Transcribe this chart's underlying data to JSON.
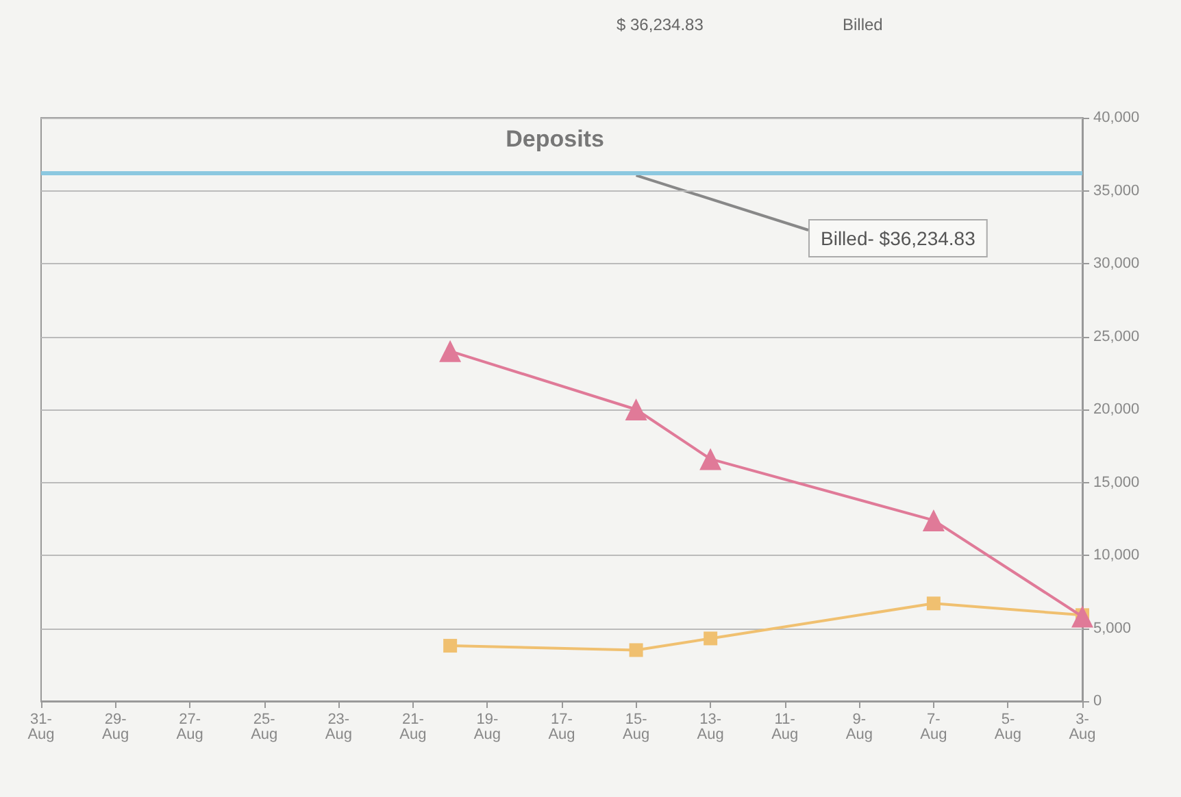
{
  "chart_data": {
    "type": "line",
    "title": "Deposits",
    "annotations": [
      "Billed",
      "$ 36,234.83"
    ],
    "x": [
      "--08-03",
      "--08-07",
      "--08-13",
      "--08-15",
      "--08-20"
    ],
    "xlim": [
      "--08-31",
      "--08-03"
    ],
    "xticks": [
      {
        "value": "--08-03",
        "label": "3-Aug"
      },
      {
        "value": "--08-05",
        "label": "5-Aug"
      },
      {
        "value": "--08-07",
        "label": "7-Aug"
      },
      {
        "value": "--08-09",
        "label": "9-Aug"
      },
      {
        "value": "--08-11",
        "label": "11-Aug"
      },
      {
        "value": "--08-13",
        "label": "13-Aug"
      },
      {
        "value": "--08-15",
        "label": "15-Aug"
      },
      {
        "value": "--08-17",
        "label": "17-Aug"
      },
      {
        "value": "--08-19",
        "label": "19-Aug"
      },
      {
        "value": "--08-21",
        "label": "21-Aug"
      },
      {
        "value": "--08-23",
        "label": "23-Aug"
      },
      {
        "value": "--08-25",
        "label": "25-Aug"
      },
      {
        "value": "--08-27",
        "label": "27-Aug"
      },
      {
        "value": "--08-29",
        "label": "29-Aug"
      },
      {
        "value": "--08-31",
        "label": "31-Aug"
      }
    ],
    "ylim": [
      0,
      40000
    ],
    "yticks": [
      0,
      {
        "value": 5000,
        "label": "5,000"
      },
      {
        "value": 10000,
        "label": "10,000"
      },
      {
        "value": 15000,
        "label": "15,000"
      },
      {
        "value": 20000,
        "label": "20,000"
      },
      {
        "value": 25000,
        "label": "25,000"
      },
      {
        "value": 30000,
        "label": "30,000"
      },
      {
        "value": 35000,
        "label": "35,000"
      },
      {
        "value": 40000,
        "label": "40,000"
      }
    ],
    "series": [
      {
        "color": "#e07a98",
        "marker": "triangle",
        "values": [
          5800,
          12400,
          16600,
          20000,
          24000
        ]
      },
      {
        "color": "#f0c070",
        "marker": "square",
        "values": [
          5900,
          6700,
          4300,
          3500,
          3800
        ]
      }
    ],
    "ref_lines": [
      {
        "axis": "y",
        "value": 36234.83,
        "label": "Billed- $36,234.83",
        "color": "#8cc8e0"
      }
    ],
    "grid": "y"
  }
}
